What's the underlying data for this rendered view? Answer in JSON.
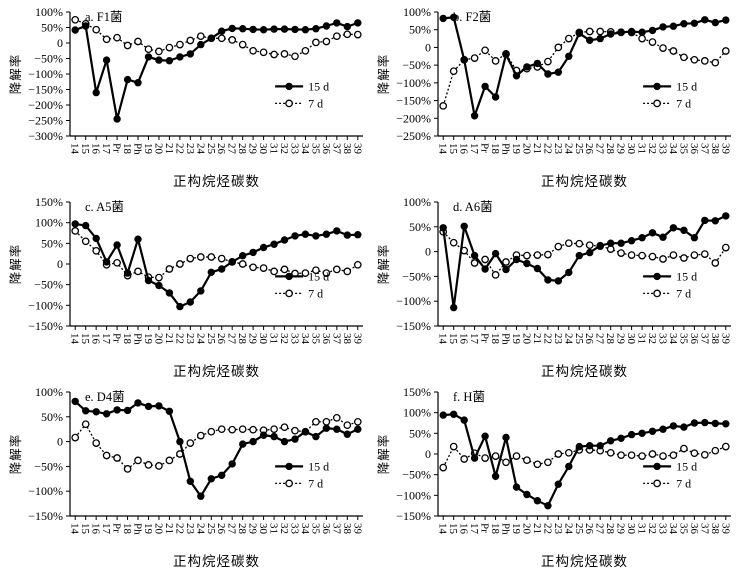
{
  "figure": {
    "background": "#ffffff",
    "ink_color": "#000000",
    "xlabel": "正构烷烃碳数",
    "ylabel": "降解率",
    "legend_position": "inside-right",
    "legend_labels": [
      "15 d",
      "7 d"
    ]
  },
  "chart_data": [
    {
      "id": "a",
      "type": "line",
      "title": "a. F1菌",
      "xlabel": "正构烷烃碳数",
      "ylabel": "降解率",
      "ylim": [
        -300,
        100
      ],
      "ytick_step": 50,
      "grid": false,
      "categories": [
        "14",
        "15",
        "16",
        "17",
        "Pr",
        "18",
        "Ph",
        "19",
        "20",
        "21",
        "22",
        "23",
        "24",
        "25",
        "26",
        "27",
        "28",
        "29",
        "30",
        "31",
        "32",
        "33",
        "34",
        "35",
        "36",
        "37",
        "38",
        "39"
      ],
      "series": [
        {
          "name": "15 d",
          "marker": "filled-circle",
          "line": "solid",
          "values": [
            42,
            55,
            -160,
            -55,
            -245,
            -118,
            -128,
            -45,
            -55,
            -57,
            -45,
            -35,
            -5,
            15,
            38,
            47,
            46,
            44,
            43,
            45,
            45,
            44,
            43,
            46,
            55,
            65,
            53,
            65
          ]
        },
        {
          "name": "7 d",
          "marker": "open-circle",
          "line": "dotted",
          "values": [
            75,
            62,
            43,
            12,
            17,
            -8,
            5,
            -20,
            -27,
            -15,
            -5,
            8,
            22,
            15,
            15,
            10,
            -5,
            -25,
            -30,
            -37,
            -35,
            -43,
            -25,
            2,
            5,
            22,
            28,
            27
          ]
        }
      ]
    },
    {
      "id": "b",
      "type": "line",
      "title": "b. F2菌",
      "xlabel": "正构烷烃碳数",
      "ylabel": "降解率",
      "ylim": [
        -250,
        100
      ],
      "ytick_step": 50,
      "grid": false,
      "categories": [
        "14",
        "15",
        "16",
        "17",
        "Pr",
        "18",
        "Ph",
        "19",
        "20",
        "21",
        "22",
        "23",
        "24",
        "25",
        "26",
        "27",
        "28",
        "29",
        "30",
        "31",
        "32",
        "33",
        "34",
        "35",
        "36",
        "37",
        "38",
        "39"
      ],
      "series": [
        {
          "name": "15 d",
          "marker": "filled-circle",
          "line": "solid",
          "values": [
            82,
            85,
            -35,
            -193,
            -110,
            -140,
            -20,
            -80,
            -55,
            -45,
            -75,
            -70,
            -25,
            40,
            20,
            25,
            38,
            42,
            45,
            43,
            48,
            58,
            60,
            67,
            68,
            78,
            70,
            77
          ]
        },
        {
          "name": "7 d",
          "marker": "open-circle",
          "line": "dotted",
          "values": [
            -165,
            -67,
            -35,
            -30,
            -8,
            -38,
            -18,
            -65,
            -60,
            -55,
            -40,
            0,
            25,
            42,
            45,
            45,
            44,
            43,
            42,
            25,
            15,
            -2,
            -10,
            -28,
            -35,
            -38,
            -43,
            -10
          ]
        }
      ]
    },
    {
      "id": "c",
      "type": "line",
      "title": "c. A5菌",
      "xlabel": "正构烷烃碳数",
      "ylabel": "降解率",
      "ylim": [
        -150,
        150
      ],
      "ytick_step": 50,
      "grid": false,
      "categories": [
        "14",
        "15",
        "16",
        "17",
        "Pr",
        "18",
        "Ph",
        "19",
        "20",
        "21",
        "22",
        "23",
        "24",
        "25",
        "26",
        "27",
        "28",
        "29",
        "30",
        "31",
        "32",
        "33",
        "34",
        "35",
        "36",
        "37",
        "38",
        "39"
      ],
      "series": [
        {
          "name": "15 d",
          "marker": "filled-circle",
          "line": "solid",
          "values": [
            97,
            93,
            62,
            5,
            46,
            -22,
            60,
            -40,
            -52,
            -70,
            -103,
            -92,
            -65,
            -20,
            -12,
            5,
            20,
            28,
            40,
            48,
            58,
            68,
            72,
            68,
            72,
            80,
            70,
            71
          ]
        },
        {
          "name": "7 d",
          "marker": "open-circle",
          "line": "dotted",
          "values": [
            80,
            55,
            32,
            -2,
            3,
            -28,
            -18,
            -32,
            -33,
            -12,
            0,
            13,
            17,
            17,
            13,
            5,
            0,
            -8,
            -10,
            -18,
            -13,
            -23,
            -22,
            -15,
            -22,
            -13,
            -18,
            -2
          ]
        }
      ]
    },
    {
      "id": "d",
      "type": "line",
      "title": "d. A6菌",
      "xlabel": "正构烷烃碳数",
      "ylabel": "降解率",
      "ylim": [
        -150,
        100
      ],
      "ytick_step": 50,
      "grid": false,
      "categories": [
        "14",
        "15",
        "16",
        "17",
        "Pr",
        "18",
        "Ph",
        "19",
        "20",
        "21",
        "22",
        "23",
        "24",
        "25",
        "26",
        "27",
        "28",
        "29",
        "30",
        "31",
        "32",
        "33",
        "34",
        "35",
        "36",
        "37",
        "38",
        "39"
      ],
      "series": [
        {
          "name": "15 d",
          "marker": "filled-circle",
          "line": "solid",
          "values": [
            48,
            -113,
            51,
            -8,
            -35,
            -4,
            -36,
            -16,
            -24,
            -34,
            -57,
            -59,
            -42,
            -8,
            -2,
            12,
            17,
            17,
            22,
            28,
            38,
            29,
            48,
            43,
            28,
            63,
            62,
            72
          ]
        },
        {
          "name": "7 d",
          "marker": "open-circle",
          "line": "dotted",
          "values": [
            40,
            18,
            2,
            -23,
            -16,
            -47,
            -21,
            -7,
            -8,
            -7,
            -6,
            10,
            17,
            16,
            13,
            11,
            5,
            -3,
            -7,
            -8,
            -10,
            -15,
            -7,
            -13,
            -7,
            -5,
            -23,
            8
          ]
        }
      ]
    },
    {
      "id": "e",
      "type": "line",
      "title": "e. D4菌",
      "xlabel": "正构烷烃碳数",
      "ylabel": "降解率",
      "ylim": [
        -150,
        100
      ],
      "ytick_step": 50,
      "grid": false,
      "categories": [
        "14",
        "15",
        "16",
        "17",
        "Pr",
        "18",
        "Ph",
        "19",
        "20",
        "21",
        "22",
        "23",
        "24",
        "25",
        "26",
        "27",
        "28",
        "29",
        "30",
        "31",
        "32",
        "33",
        "34",
        "35",
        "36",
        "37",
        "38",
        "39"
      ],
      "series": [
        {
          "name": "15 d",
          "marker": "filled-circle",
          "line": "solid",
          "values": [
            81,
            62,
            60,
            56,
            64,
            63,
            78,
            71,
            72,
            61,
            0,
            -80,
            -110,
            -75,
            -68,
            -45,
            -5,
            0,
            13,
            10,
            0,
            5,
            20,
            10,
            27,
            25,
            15,
            25
          ]
        },
        {
          "name": "7 d",
          "marker": "open-circle",
          "line": "dotted",
          "values": [
            8,
            35,
            -3,
            -28,
            -33,
            -55,
            -38,
            -47,
            -49,
            -38,
            -25,
            -3,
            12,
            20,
            25,
            24,
            25,
            24,
            23,
            25,
            29,
            22,
            20,
            40,
            40,
            48,
            33,
            40
          ]
        }
      ]
    },
    {
      "id": "f",
      "type": "line",
      "title": "f. H菌",
      "xlabel": "正构烷烃碳数",
      "ylabel": "降解率",
      "ylim": [
        -150,
        150
      ],
      "ytick_step": 50,
      "grid": false,
      "categories": [
        "14",
        "15",
        "16",
        "17",
        "Pr",
        "18",
        "Ph",
        "19",
        "20",
        "21",
        "22",
        "23",
        "24",
        "25",
        "26",
        "27",
        "28",
        "29",
        "30",
        "31",
        "32",
        "33",
        "34",
        "35",
        "36",
        "37",
        "38",
        "39"
      ],
      "series": [
        {
          "name": "15 d",
          "marker": "filled-circle",
          "line": "solid",
          "values": [
            94,
            96,
            82,
            -10,
            43,
            -54,
            40,
            -80,
            -98,
            -113,
            -125,
            -73,
            -30,
            18,
            20,
            20,
            32,
            38,
            47,
            50,
            55,
            60,
            68,
            65,
            75,
            76,
            74,
            73
          ]
        },
        {
          "name": "7 d",
          "marker": "open-circle",
          "line": "dotted",
          "values": [
            -33,
            18,
            -12,
            2,
            -10,
            -5,
            -20,
            -5,
            -15,
            -25,
            -20,
            0,
            3,
            10,
            10,
            8,
            3,
            -3,
            -3,
            -5,
            0,
            -5,
            -3,
            13,
            2,
            -2,
            8,
            18
          ]
        }
      ]
    }
  ]
}
